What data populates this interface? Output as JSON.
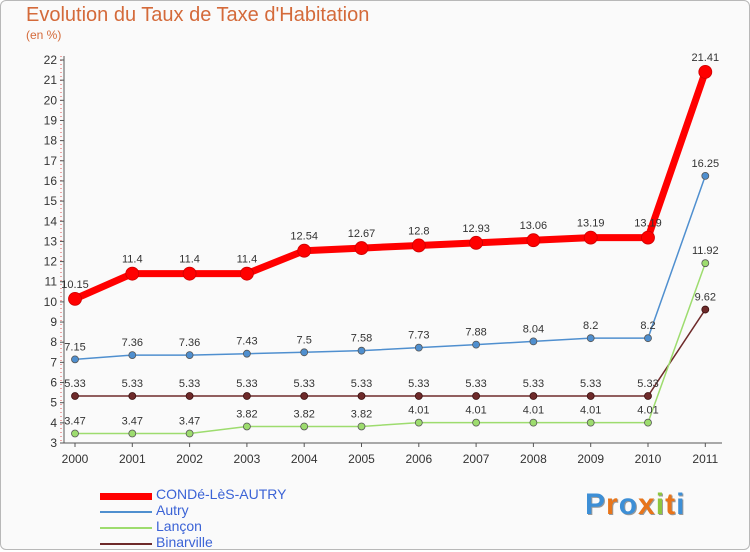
{
  "title": "Evolution du Taux de Taxe d'Habitation",
  "subtitle": "(en %)",
  "logo": "Proxiti",
  "chart_data": {
    "type": "line",
    "title": "Evolution du Taux de Taxe d'Habitation",
    "ylabel": "(en %)",
    "xlabel": "",
    "categories": [
      "2000",
      "2001",
      "2002",
      "2003",
      "2004",
      "2005",
      "2006",
      "2007",
      "2008",
      "2009",
      "2010",
      "2011"
    ],
    "ylim": [
      3,
      22
    ],
    "yticks": [
      3,
      4,
      5,
      6,
      7,
      8,
      9,
      10,
      11,
      12,
      13,
      14,
      15,
      16,
      17,
      18,
      19,
      20,
      21,
      22
    ],
    "grid": false,
    "legend_position": "bottom-left",
    "series": [
      {
        "name": "CONDé-LèS-AUTRY",
        "color": "#ff0000",
        "values": [
          10.15,
          11.4,
          11.4,
          11.4,
          12.54,
          12.67,
          12.8,
          12.93,
          13.06,
          13.19,
          13.19,
          21.41
        ],
        "labels": [
          "10.15",
          "11.4",
          "11.4",
          "11.4",
          "12.54",
          "12.67",
          "12.8",
          "12.93",
          "13.06",
          "13.19",
          "13.19",
          "21.41"
        ]
      },
      {
        "name": "Autry",
        "color": "#4f8fcf",
        "values": [
          7.15,
          7.36,
          7.36,
          7.43,
          7.5,
          7.58,
          7.73,
          7.88,
          8.04,
          8.2,
          8.2,
          16.25
        ],
        "labels": [
          "7.15",
          "7.36",
          "7.36",
          "7.43",
          "7.5",
          "7.58",
          "7.73",
          "7.88",
          "8.04",
          "8.2",
          "8.2",
          "16.25"
        ]
      },
      {
        "name": "Lançon",
        "color": "#9ddc6e",
        "values": [
          3.47,
          3.47,
          3.47,
          3.82,
          3.82,
          3.82,
          4.01,
          4.01,
          4.01,
          4.01,
          4.01,
          11.92
        ],
        "labels": [
          "3.47",
          "3.47",
          "3.47",
          "3.82",
          "3.82",
          "3.82",
          "4.01",
          "4.01",
          "4.01",
          "4.01",
          "4.01",
          "11.92"
        ]
      },
      {
        "name": "Binarville",
        "color": "#6e2a2a",
        "values": [
          5.33,
          5.33,
          5.33,
          5.33,
          5.33,
          5.33,
          5.33,
          5.33,
          5.33,
          5.33,
          5.33,
          9.62
        ],
        "labels": [
          "5.33",
          "5.33",
          "5.33",
          "5.33",
          "5.33",
          "5.33",
          "5.33",
          "5.33",
          "5.33",
          "5.33",
          "5.33",
          "9.62"
        ]
      }
    ]
  }
}
